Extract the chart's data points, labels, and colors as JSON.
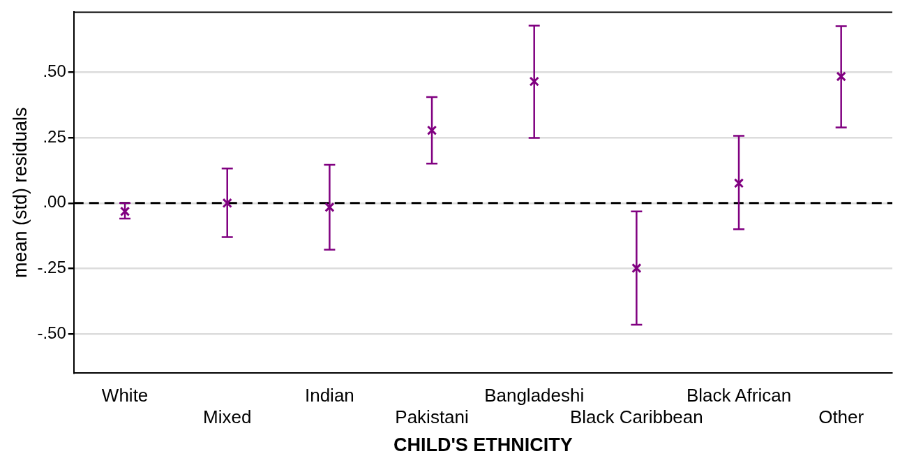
{
  "chart_data": {
    "type": "scatter",
    "xlabel": "CHILD'S ETHNICITY",
    "ylabel": "mean (std) residuals",
    "categories": [
      "White",
      "Mixed",
      "Indian",
      "Pakistani",
      "Bangladeshi",
      "Black Caribbean",
      "Black African",
      "Other"
    ],
    "values": [
      -0.032,
      0.0,
      -0.016,
      0.278,
      0.465,
      -0.249,
      0.076,
      0.484
    ],
    "errors": [
      [
        -0.059,
        0.0
      ],
      [
        -0.13,
        0.132
      ],
      [
        -0.178,
        0.146
      ],
      [
        0.151,
        0.405
      ],
      [
        0.249,
        0.678
      ],
      [
        -0.465,
        -0.032
      ],
      [
        -0.1,
        0.257
      ],
      [
        0.289,
        0.676
      ]
    ],
    "color": "#800080",
    "marker": "cross",
    "ylim": [
      -0.65,
      0.73
    ],
    "yticks": [
      {
        "value": -0.5,
        "label": "-.50"
      },
      {
        "value": -0.25,
        "label": "-.25"
      },
      {
        "value": 0,
        "label": ".00"
      },
      {
        "value": 0.25,
        "label": ".25"
      },
      {
        "value": 0.5,
        "label": ".50"
      }
    ],
    "grid": "y",
    "ref_lines": [
      {
        "axis": "y",
        "value": 0,
        "color": "#000000",
        "line_style": "dashed"
      }
    ],
    "legend": false
  }
}
